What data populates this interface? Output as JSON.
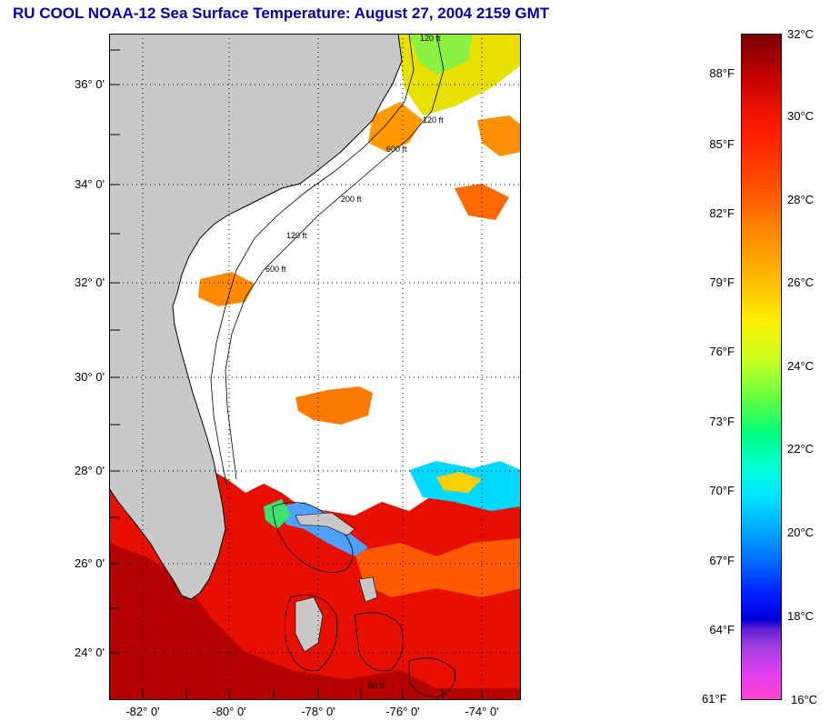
{
  "title": "RU COOL  NOAA-12  Sea Surface Temperature:  August 27, 2004 2159 GMT",
  "map": {
    "lat_ticks": [
      "36° 0'",
      "34° 0'",
      "32° 0'",
      "30° 0'",
      "28° 0'",
      "26° 0'",
      "24° 0'"
    ],
    "lon_ticks": [
      "-82° 0'",
      "-80° 0'",
      "-78° 0'",
      "-76° 0'",
      "-74° 0'"
    ],
    "contour_labels": [
      "120 ft",
      "120 ft",
      "600 ft",
      "200 ft",
      "120 ft",
      "600 ft",
      "60 ft"
    ],
    "colors": {
      "land": "#c8c8c8",
      "cloud": "#ffffff",
      "grid": "#000000"
    }
  },
  "colorbar": {
    "fahrenheit_labels": [
      "88°F",
      "85°F",
      "82°F",
      "79°F",
      "76°F",
      "73°F",
      "70°F",
      "67°F",
      "64°F",
      "61°F"
    ],
    "celsius_labels": [
      "32°C",
      "30°C",
      "28°C",
      "26°C",
      "24°C",
      "22°C",
      "20°C",
      "18°C",
      "16°C"
    ]
  }
}
